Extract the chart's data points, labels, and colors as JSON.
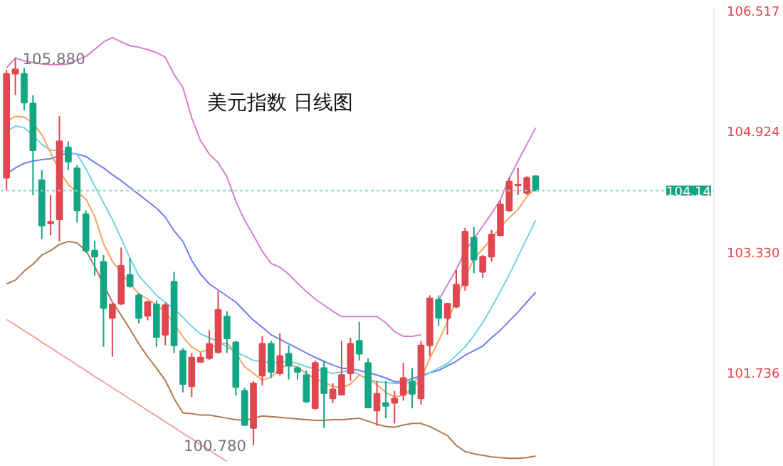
{
  "chart_data": {
    "type": "candlestick",
    "title": "美元指数  日线图",
    "categories": [
      null,
      null,
      null,
      null,
      null,
      null,
      null,
      null,
      null,
      null,
      null,
      null,
      null,
      null,
      null,
      null,
      null,
      null,
      null,
      null,
      null,
      null,
      null,
      null,
      null,
      null,
      null,
      null,
      null,
      null,
      null,
      null,
      null,
      null,
      null,
      null,
      null,
      null,
      null,
      null,
      null,
      null,
      null,
      null,
      null,
      null,
      null,
      null,
      null,
      null,
      null,
      null,
      null,
      null,
      null,
      null,
      null,
      null,
      null,
      null,
      null
    ],
    "ohlc": [
      [
        104.31,
        105.73,
        104.145,
        105.68
      ],
      [
        105.68,
        105.88,
        105.4,
        105.74
      ],
      [
        105.68,
        105.76,
        105.2,
        105.3
      ],
      [
        105.29,
        105.4,
        104.08,
        104.67
      ],
      [
        104.28,
        104.41,
        103.5,
        103.68
      ],
      [
        103.71,
        104.08,
        103.55,
        103.73
      ],
      [
        103.76,
        105.12,
        103.47,
        104.79
      ],
      [
        104.71,
        104.79,
        104.41,
        104.52
      ],
      [
        104.435,
        104.475,
        103.72,
        103.88
      ],
      [
        103.83,
        103.88,
        103.32,
        103.35
      ],
      [
        103.35,
        103.48,
        103.02,
        103.27
      ],
      [
        103.2,
        103.29,
        102.08,
        102.59
      ],
      [
        102.46,
        102.66,
        101.95,
        102.64
      ],
      [
        102.65,
        103.39,
        102.63,
        103.15
      ],
      [
        103.03,
        103.25,
        102.86,
        102.88
      ],
      [
        102.76,
        102.79,
        102.39,
        102.46
      ],
      [
        102.49,
        102.69,
        102.43,
        102.67
      ],
      [
        102.64,
        102.69,
        102.08,
        102.21
      ],
      [
        102.24,
        102.66,
        102.1,
        102.63
      ],
      [
        102.94,
        103.07,
        102.0,
        102.1
      ],
      [
        102.03,
        102.06,
        101.48,
        101.59
      ],
      [
        101.56,
        102.0,
        101.42,
        101.94
      ],
      [
        101.88,
        102.0,
        101.87,
        101.94
      ],
      [
        101.93,
        102.3,
        101.91,
        102.12
      ],
      [
        102.01,
        102.81,
        101.99,
        102.57
      ],
      [
        102.48,
        102.55,
        102.0,
        102.19
      ],
      [
        102.14,
        102.16,
        101.44,
        101.55
      ],
      [
        101.5,
        101.54,
        101.04,
        101.05
      ],
      [
        101.01,
        101.63,
        100.78,
        101.6
      ],
      [
        101.7,
        102.22,
        101.57,
        102.12
      ],
      [
        102.12,
        102.16,
        101.67,
        101.75
      ],
      [
        101.73,
        102.26,
        101.7,
        101.96
      ],
      [
        101.99,
        102.1,
        101.65,
        101.83
      ],
      [
        101.8,
        101.83,
        101.65,
        101.75
      ],
      [
        101.71,
        101.77,
        101.34,
        101.36
      ],
      [
        101.27,
        101.9,
        101.25,
        101.87
      ],
      [
        101.8,
        101.9,
        101.01,
        101.47
      ],
      [
        101.4,
        101.6,
        101.34,
        101.52
      ],
      [
        101.45,
        102.16,
        101.44,
        101.71
      ],
      [
        101.73,
        102.2,
        101.63,
        102.12
      ],
      [
        102.16,
        102.41,
        101.9,
        101.99
      ],
      [
        101.87,
        101.93,
        101.27,
        101.28
      ],
      [
        101.24,
        101.63,
        101.04,
        101.46
      ],
      [
        101.34,
        101.63,
        101.14,
        101.3
      ],
      [
        101.34,
        101.5,
        101.07,
        101.4
      ],
      [
        101.45,
        101.87,
        101.37,
        101.67
      ],
      [
        101.62,
        101.8,
        101.27,
        101.46
      ],
      [
        101.4,
        102.16,
        101.32,
        102.1
      ],
      [
        102.1,
        102.76,
        101.96,
        102.72
      ],
      [
        102.7,
        102.76,
        102.36,
        102.46
      ],
      [
        102.46,
        102.66,
        102.24,
        102.65
      ],
      [
        102.61,
        103.09,
        102.59,
        102.9
      ],
      [
        102.89,
        103.65,
        102.82,
        103.6
      ],
      [
        103.52,
        103.66,
        103.05,
        103.23
      ],
      [
        103.07,
        103.29,
        102.99,
        103.27
      ],
      [
        103.27,
        103.62,
        103.2,
        103.56
      ],
      [
        103.55,
        104.01,
        103.54,
        103.96
      ],
      [
        103.88,
        104.31,
        103.86,
        104.26
      ],
      [
        104.21,
        104.44,
        104.08,
        104.22
      ],
      [
        104.11,
        104.33,
        104.08,
        104.31
      ],
      [
        104.33,
        104.34,
        104.14,
        104.14
      ]
    ],
    "colors": [
      "#e0474f",
      "#e0474f",
      "#14a584",
      "#14a584",
      "#14a584",
      "#e0474f",
      "#e0474f",
      "#14a584",
      "#14a584",
      "#14a584",
      "#14a584",
      "#14a584",
      "#e0474f",
      "#e0474f",
      "#14a584",
      "#14a584",
      "#e0474f",
      "#14a584",
      "#e0474f",
      "#14a584",
      "#14a584",
      "#e0474f",
      "#e0474f",
      "#e0474f",
      "#e0474f",
      "#14a584",
      "#14a584",
      "#14a584",
      "#e0474f",
      "#e0474f",
      "#14a584",
      "#e0474f",
      "#14a584",
      "#14a584",
      "#14a584",
      "#e0474f",
      "#14a584",
      "#e0474f",
      "#e0474f",
      "#e0474f",
      "#14a584",
      "#14a584",
      "#e0474f",
      "#14a584",
      "#e0474f",
      "#e0474f",
      "#14a584",
      "#e0474f",
      "#e0474f",
      "#14a584",
      "#e0474f",
      "#e0474f",
      "#e0474f",
      "#14a584",
      "#e0474f",
      "#e0474f",
      "#e0474f",
      "#e0474f",
      "#e0474f",
      "#e0474f",
      "#14a584"
    ],
    "series": [
      {
        "type": "line",
        "color": "#d67fd2",
        "values": [
          105.76,
          105.89,
          105.85,
          105.83,
          105.81,
          105.8,
          105.8,
          105.81,
          105.86,
          105.91,
          106.0,
          106.1,
          106.16,
          106.1,
          106.05,
          106.03,
          106.0,
          105.96,
          105.9,
          105.67,
          105.5,
          105.1,
          104.8,
          104.62,
          104.51,
          104.32,
          104.0,
          103.75,
          103.55,
          103.34,
          103.18,
          103.13,
          103.04,
          102.92,
          102.81,
          102.71,
          102.63,
          102.55,
          102.48,
          102.48,
          102.48,
          102.48,
          102.48,
          102.4,
          102.28,
          102.22,
          102.22,
          102.24,
          null,
          102.69,
          102.9,
          103.1,
          103.34,
          103.51,
          103.67,
          103.84,
          104.02,
          104.3,
          104.53,
          104.75,
          104.97
        ]
      },
      {
        "type": "line",
        "color": "#b07850",
        "values": [
          102.91,
          102.96,
          103.08,
          103.17,
          103.29,
          103.35,
          103.43,
          103.47,
          103.45,
          103.35,
          103.14,
          102.9,
          102.67,
          102.5,
          102.31,
          102.12,
          101.95,
          101.8,
          101.64,
          101.4,
          101.21,
          101.2,
          101.18,
          101.18,
          101.16,
          101.14,
          101.12,
          101.11,
          101.14,
          101.17,
          101.16,
          101.15,
          101.14,
          101.13,
          101.12,
          101.11,
          101.11,
          101.12,
          101.12,
          101.13,
          101.14,
          101.1,
          101.06,
          101.03,
          101.02,
          101.05,
          101.07,
          101.07,
          101.03,
          100.97,
          100.91,
          100.78,
          100.7,
          100.67,
          100.65,
          100.63,
          100.62,
          100.61,
          100.61,
          100.62,
          100.64
        ]
      },
      {
        "type": "line",
        "color": "#6f7ef0",
        "values": [
          104.36,
          104.44,
          104.5,
          104.53,
          104.55,
          104.56,
          104.6,
          104.64,
          104.62,
          104.59,
          104.51,
          104.44,
          104.35,
          104.27,
          104.18,
          104.09,
          104.0,
          103.91,
          103.79,
          103.61,
          103.47,
          103.22,
          103.04,
          102.91,
          102.83,
          102.75,
          102.67,
          102.55,
          102.43,
          102.34,
          102.24,
          102.18,
          102.12,
          102.06,
          102.0,
          101.94,
          101.89,
          101.84,
          101.8,
          101.79,
          101.77,
          101.74,
          101.71,
          101.67,
          101.62,
          101.62,
          101.66,
          101.7,
          101.74,
          101.77,
          101.83,
          101.89,
          101.97,
          102.03,
          102.09,
          102.2,
          102.3,
          102.42,
          102.54,
          102.67,
          102.8
        ]
      },
      {
        "type": "line",
        "color": "#6dd6e0",
        "values": [
          104.92,
          104.99,
          104.97,
          104.87,
          104.75,
          104.67,
          104.67,
          104.64,
          104.62,
          104.43,
          104.2,
          103.98,
          103.76,
          103.51,
          103.25,
          103.02,
          102.89,
          102.76,
          102.67,
          102.58,
          102.47,
          102.35,
          102.25,
          102.2,
          102.15,
          102.08,
          102.01,
          101.96,
          101.9,
          101.89,
          101.87,
          101.88,
          101.89,
          101.86,
          101.82,
          101.79,
          101.76,
          101.73,
          101.75,
          101.77,
          101.71,
          101.65,
          101.62,
          101.61,
          101.6,
          101.6,
          101.62,
          101.68,
          101.74,
          101.8,
          101.86,
          101.97,
          102.08,
          102.23,
          102.4,
          102.6,
          102.81,
          103.03,
          103.27,
          103.51,
          103.75
        ]
      },
      {
        "type": "line",
        "color": "#f6a45e",
        "values": [
          105.05,
          105.12,
          105.11,
          105.03,
          104.88,
          104.64,
          104.4,
          104.22,
          104.12,
          104.03,
          103.8,
          103.44,
          103.21,
          103.06,
          102.91,
          102.78,
          102.71,
          102.63,
          102.54,
          102.39,
          102.21,
          102.08,
          102.01,
          102.05,
          102.12,
          102.13,
          102.0,
          101.82,
          101.73,
          101.64,
          101.68,
          101.79,
          101.85,
          101.81,
          101.73,
          101.66,
          101.61,
          101.56,
          101.54,
          101.59,
          101.71,
          101.66,
          101.58,
          101.48,
          101.42,
          101.44,
          101.53,
          101.66,
          101.93,
          102.16,
          102.41,
          102.7,
          103.0,
          103.24,
          103.37,
          103.51,
          103.66,
          103.78,
          103.89,
          104.06,
          104.18
        ]
      },
      {
        "type": "line",
        "color": "#f4a3a3",
        "values": [
          102.44,
          102.37,
          102.29,
          102.22,
          102.14,
          102.07,
          101.99,
          101.92,
          101.84,
          101.77,
          101.69,
          101.62,
          101.54,
          101.47,
          101.39,
          101.32,
          101.24,
          101.17,
          101.09,
          101.02,
          100.94,
          100.87,
          100.79,
          100.72,
          100.64,
          100.57,
          null,
          null,
          null,
          null,
          null,
          null,
          null,
          null,
          null,
          null,
          null,
          null,
          null,
          null,
          null,
          null,
          null,
          null,
          null,
          null,
          null,
          null,
          null,
          null,
          null,
          null,
          null,
          null,
          null,
          null,
          null,
          null,
          null,
          null,
          null
        ]
      }
    ],
    "ylim": [
      100.5,
      106.55
    ],
    "yticks": [
      101.736,
      {
        "value": 103.33,
        "label": "103.330"
      },
      104.924,
      106.517
    ],
    "ref_lines": [
      {
        "axis": "y",
        "value": 104.14,
        "label": "104.14",
        "color": "#8fd6c8",
        "line_style": "dashed"
      }
    ],
    "annotations": [
      {
        "text": "105.880",
        "y": 105.88
      },
      {
        "text": "100.780",
        "y": 100.78
      }
    ],
    "tick_labels": "y",
    "grid": false
  }
}
